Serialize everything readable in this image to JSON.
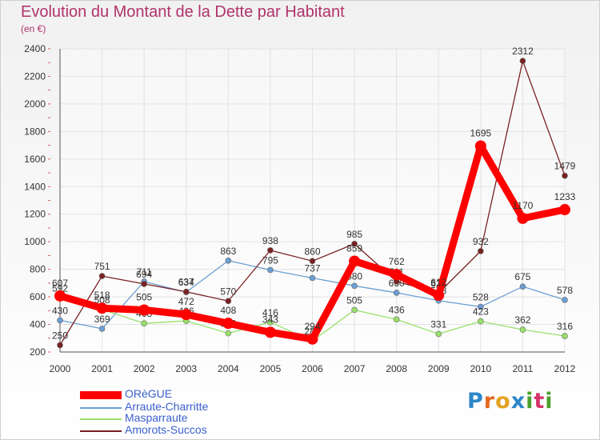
{
  "chart_data": {
    "type": "line",
    "title": "Evolution du Montant de la Dette par Habitant",
    "subtitle": "(en €)",
    "x": [
      "2000",
      "2001",
      "2002",
      "2003",
      "2004",
      "2005",
      "2006",
      "2007",
      "2008",
      "2009",
      "2010",
      "2011",
      "2012"
    ],
    "ylim": [
      200,
      2400
    ],
    "yticks": [
      200,
      400,
      600,
      800,
      1000,
      1200,
      1400,
      1600,
      1800,
      2000,
      2200,
      2400
    ],
    "grid": true,
    "legend_position": "bottom-left",
    "series": [
      {
        "name": "ORèGUE",
        "color": "#ff0000",
        "values": [
          607,
          518,
          505,
          472,
          408,
          343,
          294,
          859,
          762,
          612,
          1695,
          1170,
          1233
        ]
      },
      {
        "name": "Arraute-Charritte",
        "color": "#6a9fd2",
        "values": [
          430,
          369,
          711,
          634,
          863,
          795,
          737,
          680,
          630,
          573,
          528,
          675,
          578
        ]
      },
      {
        "name": "Masparraute",
        "color": "#99e06a",
        "values": [
          592,
          508,
          408,
          426,
          336,
          416,
          280,
          505,
          436,
          331,
          423,
          362,
          316
        ]
      },
      {
        "name": "Amorots-Succos",
        "color": "#7a2121",
        "values": [
          250,
          751,
          694,
          637,
          570,
          938,
          860,
          985,
          711,
          628,
          932,
          2312,
          1479
        ]
      }
    ]
  },
  "brand": {
    "letters": [
      "P",
      "r",
      "o",
      "x",
      "i",
      "t",
      "i"
    ],
    "colors": [
      "#2e86c8",
      "#e36a1f",
      "#e3a21f",
      "#2e86c8",
      "#4aa02c",
      "#d6336c",
      "#4aa02c"
    ]
  }
}
